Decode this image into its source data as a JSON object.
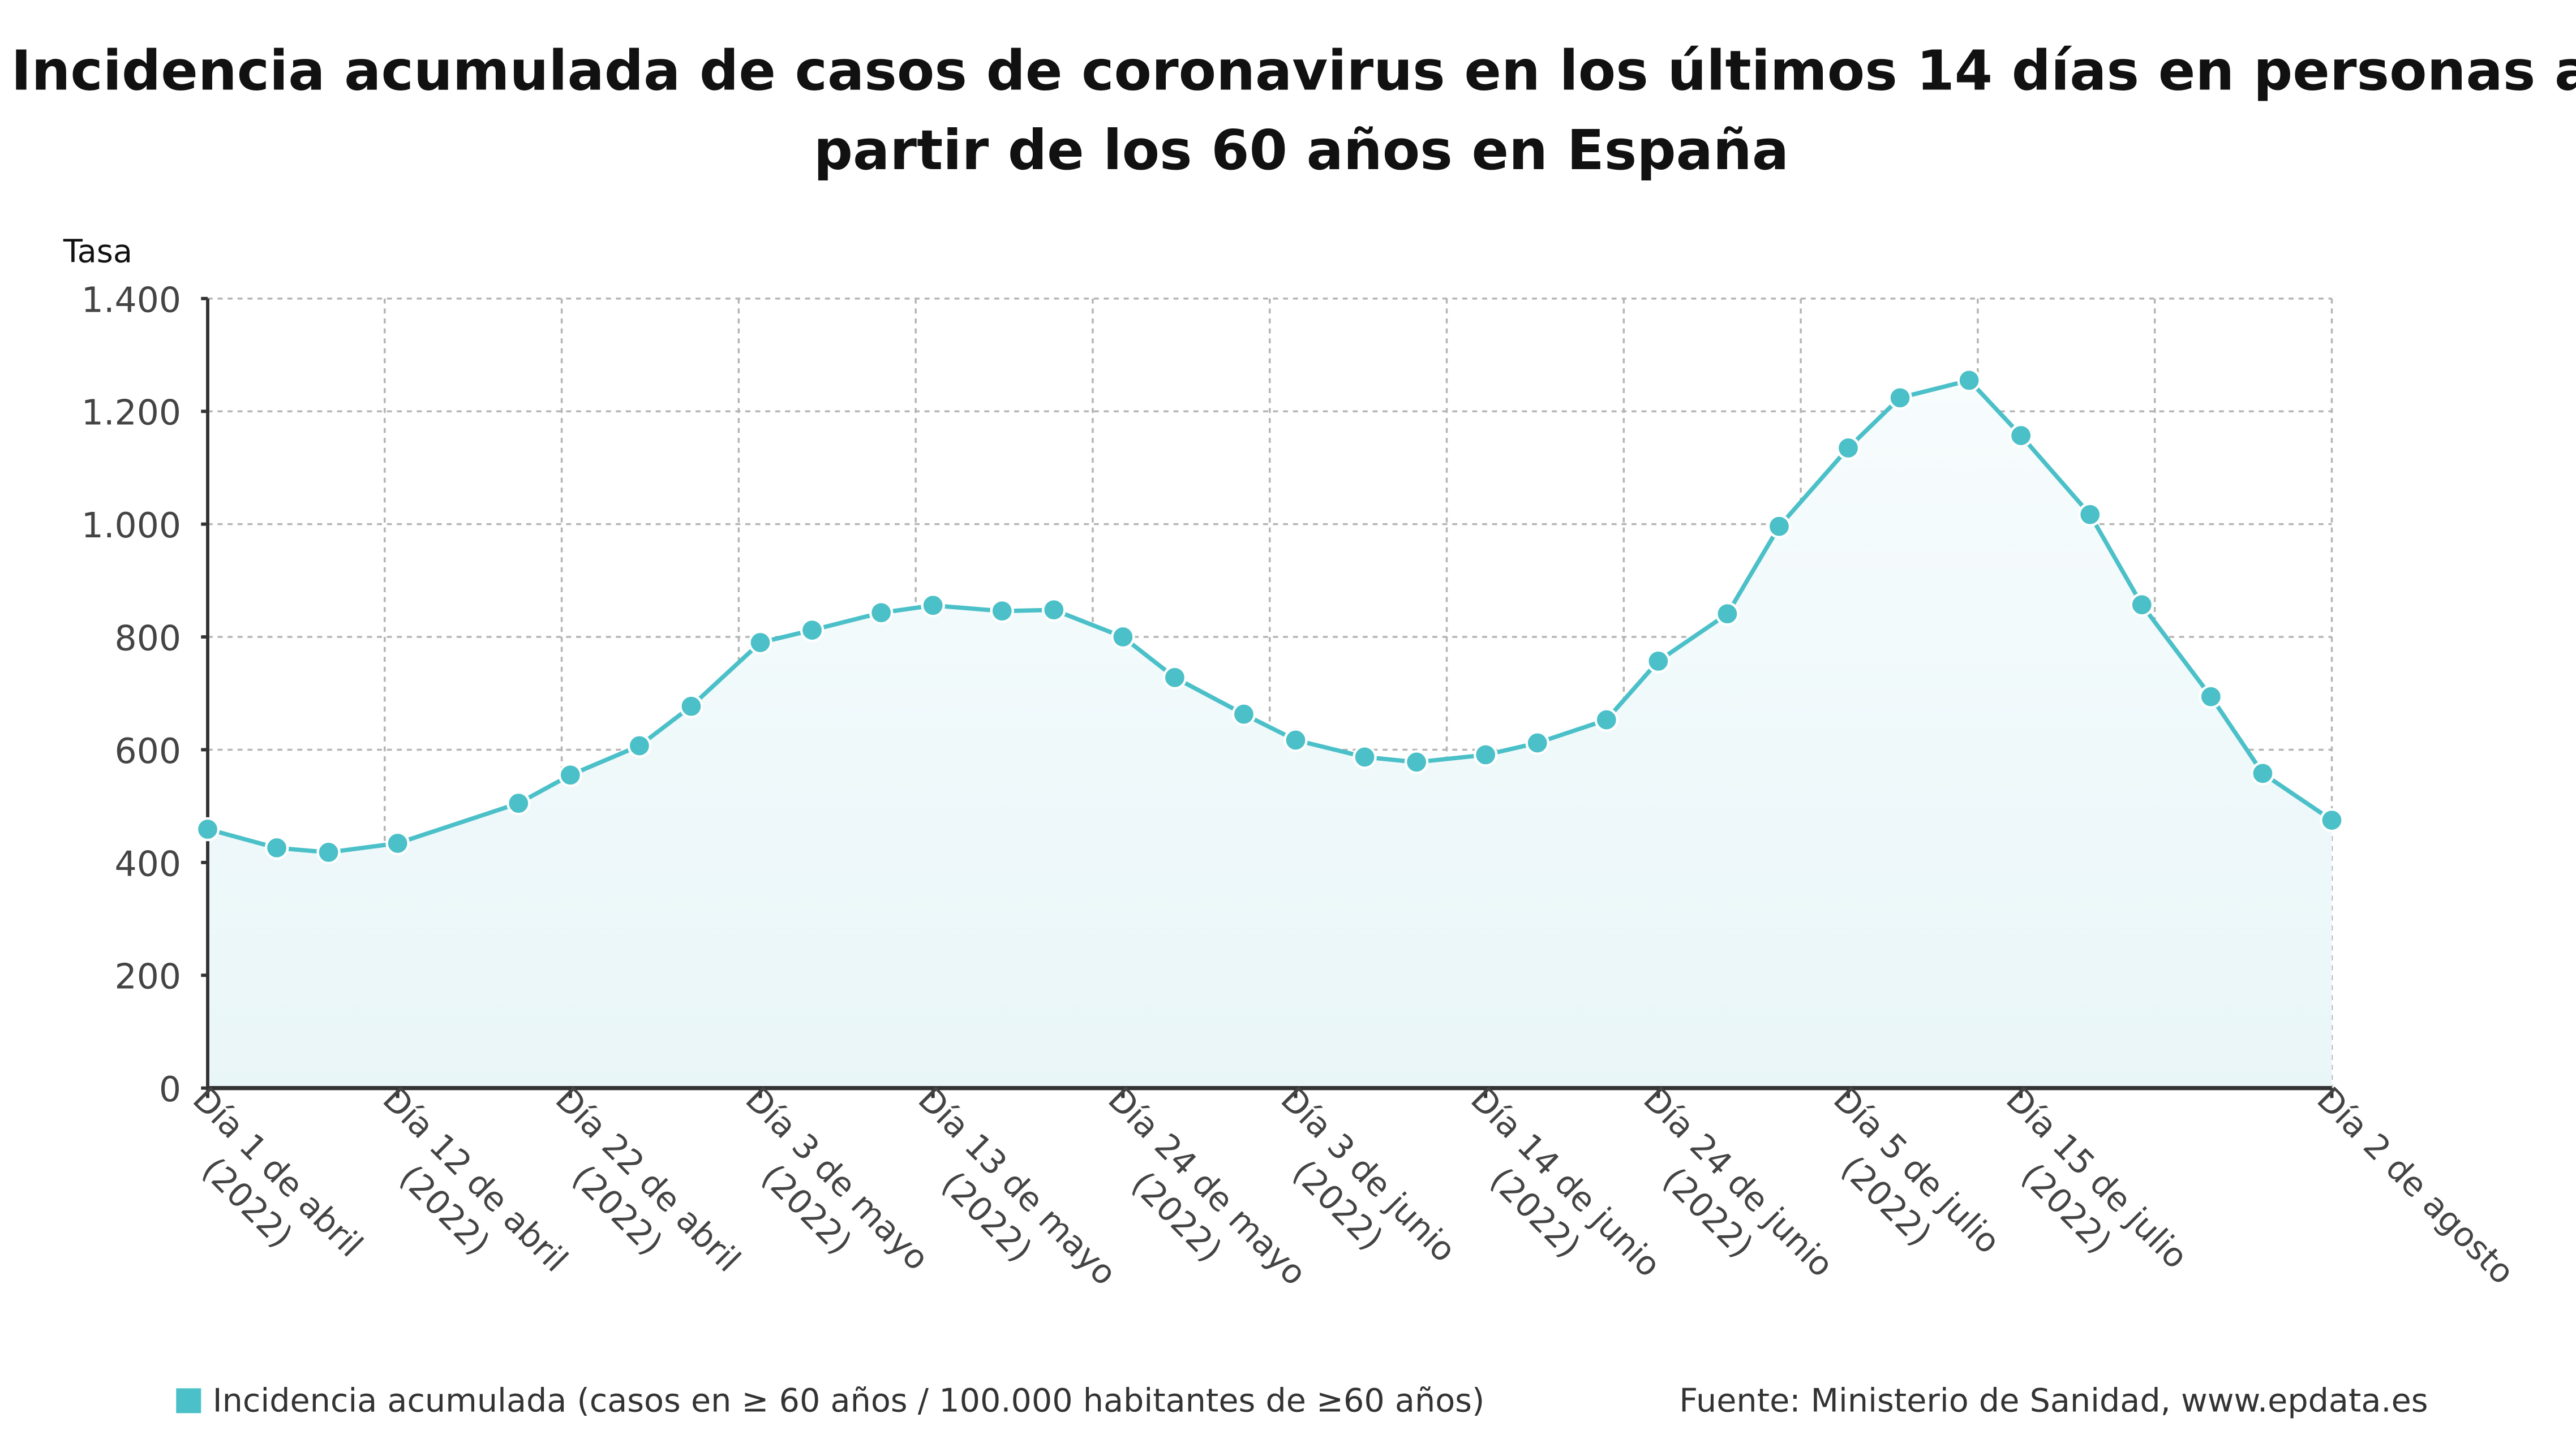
{
  "chart_data": {
    "type": "area",
    "title": "Incidencia acumulada de casos de coronavirus en los últimos 14 días en personas a partir de los 60 años en España",
    "title_lines": [
      "Incidencia acumulada de casos de coronavirus en los últimos 14 días en personas a",
      "partir de los 60 años en España"
    ],
    "ylabel": "Tasa",
    "xlabel": "",
    "ylim": [
      0,
      1400
    ],
    "yticks": [
      0,
      200,
      400,
      600,
      800,
      1000,
      1200,
      1400
    ],
    "ytick_labels": [
      "0",
      "200",
      "400",
      "600",
      "800",
      "1.000",
      "1.200",
      "1.400"
    ],
    "xlim": [
      "2022-04-01",
      "2022-08-02"
    ],
    "grid": true,
    "legend_position": "bottom-left",
    "colors": {
      "series": "#4BC0C8",
      "fill_top": "#F7FCFD",
      "fill_bottom": "#E9F6F8",
      "grid": "#B5B5B5",
      "axis": "#333333"
    },
    "xtick_labels": [
      {
        "date": "2022-04-01",
        "lines": [
          "Día 1 de abril",
          "(2022)"
        ]
      },
      {
        "date": "2022-04-12",
        "lines": [
          "Día 12 de abril",
          "(2022)"
        ]
      },
      {
        "date": "2022-04-22",
        "lines": [
          "Día 22 de abril",
          "(2022)"
        ]
      },
      {
        "date": "2022-05-03",
        "lines": [
          "Día 3 de mayo",
          "(2022)"
        ]
      },
      {
        "date": "2022-05-13",
        "lines": [
          "Día 13 de mayo",
          "(2022)"
        ]
      },
      {
        "date": "2022-05-24",
        "lines": [
          "Día 24 de mayo",
          "(2022)"
        ]
      },
      {
        "date": "2022-06-03",
        "lines": [
          "Día 3 de junio",
          "(2022)"
        ]
      },
      {
        "date": "2022-06-14",
        "lines": [
          "Día 14 de junio",
          "(2022)"
        ]
      },
      {
        "date": "2022-06-24",
        "lines": [
          "Día 24 de junio",
          "(2022)"
        ]
      },
      {
        "date": "2022-07-05",
        "lines": [
          "Día 5 de julio",
          "(2022)"
        ]
      },
      {
        "date": "2022-07-15",
        "lines": [
          "Día 15 de julio",
          "(2022)"
        ]
      },
      {
        "date": "2022-08-02",
        "lines": [
          "Día 2 de agosto"
        ]
      }
    ],
    "series": [
      {
        "name": "Incidencia acumulada (casos en ≥ 60 años / 100.000 habitantes de ≥60 años)",
        "x": [
          "2022-04-01",
          "2022-04-05",
          "2022-04-08",
          "2022-04-12",
          "2022-04-19",
          "2022-04-22",
          "2022-04-26",
          "2022-04-29",
          "2022-05-03",
          "2022-05-06",
          "2022-05-10",
          "2022-05-13",
          "2022-05-17",
          "2022-05-20",
          "2022-05-24",
          "2022-05-27",
          "2022-05-31",
          "2022-06-03",
          "2022-06-07",
          "2022-06-10",
          "2022-06-14",
          "2022-06-17",
          "2022-06-21",
          "2022-06-24",
          "2022-06-28",
          "2022-07-01",
          "2022-07-05",
          "2022-07-08",
          "2022-07-12",
          "2022-07-15",
          "2022-07-19",
          "2022-07-22",
          "2022-07-26",
          "2022-07-29",
          "2022-08-02"
        ],
        "values": [
          459,
          426,
          418,
          434,
          505,
          555,
          607,
          677,
          790,
          812,
          843,
          856,
          846,
          848,
          800,
          728,
          663,
          617,
          587,
          578,
          591,
          612,
          653,
          757,
          841,
          996,
          1135,
          1224,
          1255,
          1157,
          1017,
          857,
          694,
          558,
          475
        ]
      }
    ],
    "source": "Fuente: Ministerio de Sanidad, www.epdata.es"
  }
}
